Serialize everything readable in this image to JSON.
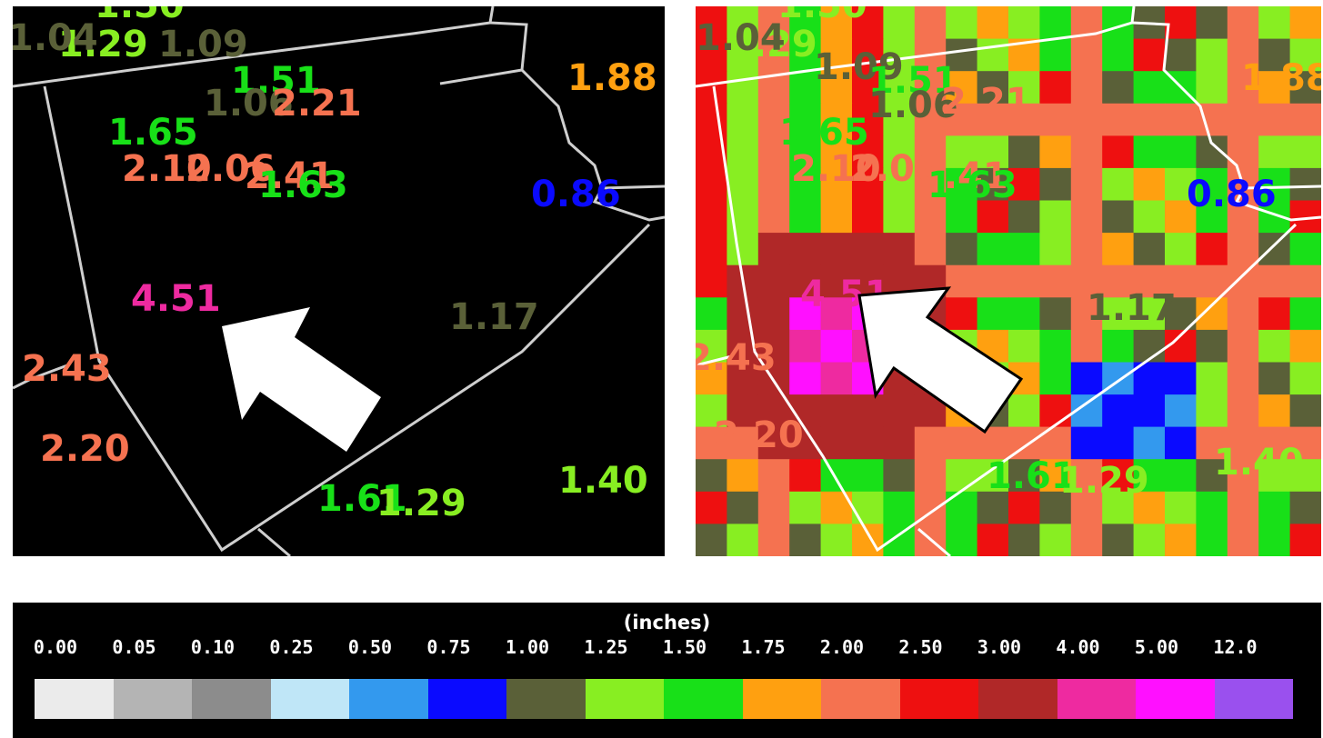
{
  "legend": {
    "unit": "(inches)",
    "bins": [
      {
        "label": "0.00",
        "color": "#ebebeb"
      },
      {
        "label": "0.05",
        "color": "#b4b4b4"
      },
      {
        "label": "0.10",
        "color": "#8c8c8c"
      },
      {
        "label": "0.25",
        "color": "#bfe6f7"
      },
      {
        "label": "0.50",
        "color": "#3399ee"
      },
      {
        "label": "0.75",
        "color": "#0a0aff"
      },
      {
        "label": "1.00",
        "color": "#5a6038"
      },
      {
        "label": "1.25",
        "color": "#88ee22"
      },
      {
        "label": "1.50",
        "color": "#18e018"
      },
      {
        "label": "1.75",
        "color": "#ffa010"
      },
      {
        "label": "2.00",
        "color": "#f57250"
      },
      {
        "label": "2.50",
        "color": "#ee1010"
      },
      {
        "label": "3.00",
        "color": "#b02828"
      },
      {
        "label": "4.00",
        "color": "#ee2aa0"
      },
      {
        "label": "5.00",
        "color": "#ff10ff"
      },
      {
        "label": "12.0",
        "color": "#9a50ee"
      }
    ]
  },
  "gauge_values": [
    {
      "text": "1.29",
      "color": "#88ee22"
    },
    {
      "text": "1.09",
      "color": "#5a6038"
    },
    {
      "text": "1.04",
      "color": "#5a6038"
    },
    {
      "text": "1.50",
      "color": "#88ee22"
    },
    {
      "text": "1.51",
      "color": "#18e018"
    },
    {
      "text": "1.06",
      "color": "#5a6038"
    },
    {
      "text": "2.21",
      "color": "#f57250"
    },
    {
      "text": "1.88",
      "color": "#ffa010"
    },
    {
      "text": "1.65",
      "color": "#18e018"
    },
    {
      "text": "2.10",
      "color": "#f57250"
    },
    {
      "text": "2.06",
      "color": "#f57250"
    },
    {
      "text": "2.41",
      "color": "#f57250"
    },
    {
      "text": "1.63",
      "color": "#18e018"
    },
    {
      "text": "0.86",
      "color": "#0a0aff"
    },
    {
      "text": "4.51",
      "color": "#ee2aa0"
    },
    {
      "text": "1.17",
      "color": "#5a6038"
    },
    {
      "text": "2.43",
      "color": "#f57250"
    },
    {
      "text": "2.20",
      "color": "#f57250"
    },
    {
      "text": "1.61",
      "color": "#18e018"
    },
    {
      "text": "1.29",
      "color": "#88ee22"
    },
    {
      "text": "1.40",
      "color": "#88ee22"
    }
  ],
  "boundary_color": "#cfcfcf",
  "arrow_color": "#ffffff"
}
